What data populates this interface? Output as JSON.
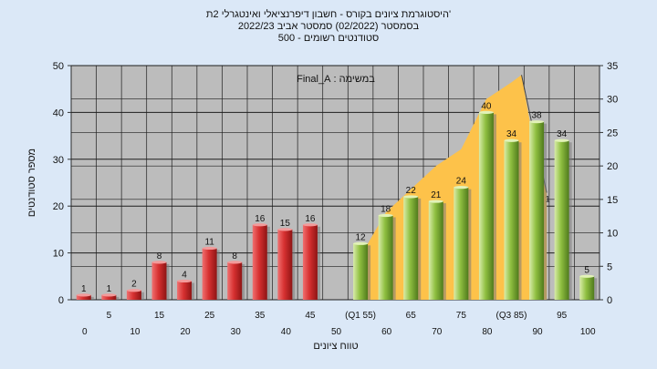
{
  "header": {
    "line1": "היסטוגרמת ציונים בקורס - חשבון דיפרנציאלי ואינטגרלי 2ת'",
    "line2": "בסמסטר  (02/2022)  סמסטר אביב 2022/23",
    "line3": "סטודנטים רשומים - 500"
  },
  "colors": {
    "page_bg": "#dbe8f7",
    "plot_bg": "#bcbcbc",
    "area": "#fdc24a",
    "bar_red": "#d63030",
    "bar_green": "#8fbf40",
    "grid": "#1e1e1e"
  },
  "chart_data": {
    "type": "bar",
    "annotation": "במשימה : Final_A",
    "ylabel": "מספר סטודנטים",
    "xlabel": "טווח ציונים",
    "ylim": [
      0,
      50
    ],
    "y2lim": [
      0,
      35
    ],
    "yticks": [
      "0",
      "10",
      "20",
      "30",
      "40",
      "50"
    ],
    "y2ticks": [
      "0",
      "5",
      "10",
      "15",
      "20",
      "25",
      "30",
      "35"
    ],
    "grid": true,
    "categories": [
      "0",
      "5",
      "10",
      "15",
      "20",
      "25",
      "30",
      "35",
      "40",
      "45",
      "50",
      "55",
      "60",
      "65",
      "70",
      "75",
      "80",
      "85",
      "90",
      "95",
      "100"
    ],
    "xticks_top": [
      "5",
      "15",
      "25",
      "35",
      "45",
      "(Q1 55)",
      "65",
      "75",
      "(Q3 85)",
      "95"
    ],
    "xticks_bottom": [
      "0",
      "10",
      "20",
      "30",
      "40",
      "50",
      "60",
      "70",
      "80",
      "90",
      "100"
    ],
    "series": [
      {
        "color": "red",
        "values": [
          1,
          1,
          2,
          8,
          4,
          11,
          8,
          16,
          15,
          16,
          null,
          null,
          null,
          null,
          null,
          null,
          null,
          null,
          null,
          null,
          null
        ]
      },
      {
        "color": "green",
        "values": [
          null,
          null,
          null,
          null,
          null,
          null,
          null,
          null,
          null,
          null,
          null,
          12,
          18,
          22,
          21,
          24,
          40,
          34,
          38,
          34,
          5
        ]
      }
    ],
    "data_labels": [
      "1",
      "1",
      "2",
      "8",
      "4",
      "11",
      "8",
      "16",
      "15",
      "16",
      "",
      "12",
      "18",
      "22",
      "21",
      "24",
      "40",
      "34",
      "38",
      "34",
      "5"
    ],
    "area_y2": [
      [
        55,
        0
      ],
      [
        56,
        7.8
      ],
      [
        60,
        13
      ],
      [
        65,
        16.5
      ],
      [
        70,
        20
      ],
      [
        75,
        22.5
      ],
      [
        80,
        30
      ],
      [
        85,
        32.5
      ],
      [
        87,
        33.6
      ],
      [
        90,
        21
      ],
      [
        92,
        16
      ]
    ],
    "area_label": "1"
  }
}
